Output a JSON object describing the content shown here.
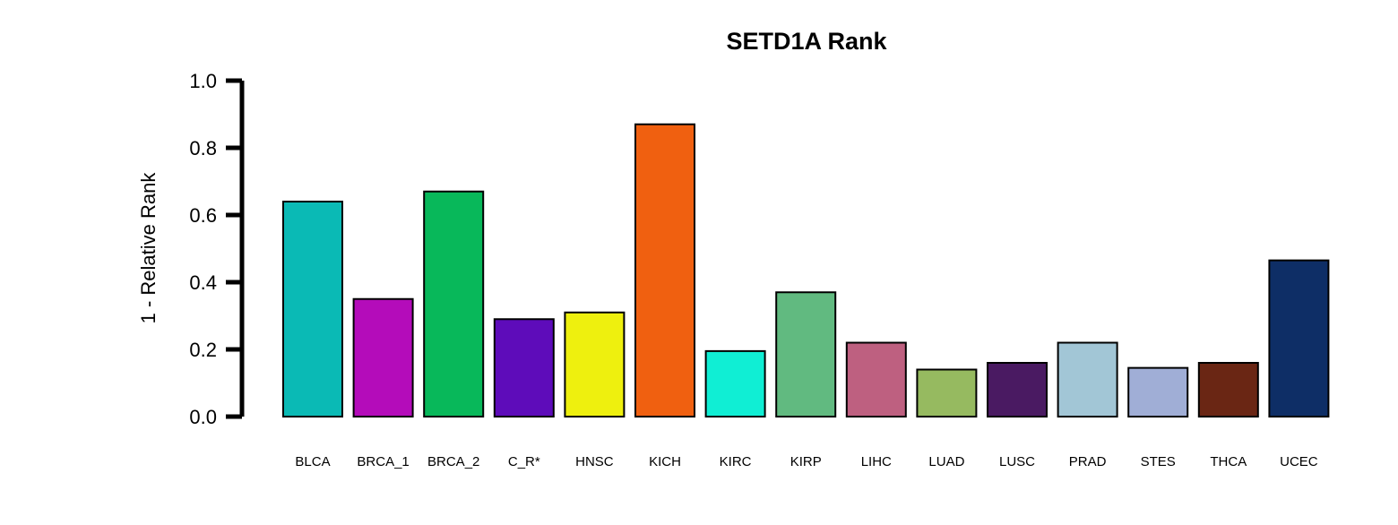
{
  "chart_data": {
    "type": "bar",
    "title": "SETD1A Rank",
    "ylabel": "1 - Relative Rank",
    "xlabel": "",
    "ylim": [
      0,
      1
    ],
    "yticks": [
      "0.0",
      "0.2",
      "0.4",
      "0.6",
      "0.8",
      "1.0"
    ],
    "ytick_values": [
      0,
      0.2,
      0.4,
      0.6,
      0.8,
      1.0
    ],
    "grid": false,
    "legend": "none",
    "categories": [
      "BLCA",
      "BRCA_1",
      "BRCA_2",
      "C_R*",
      "HNSC",
      "KICH",
      "KIRC",
      "KIRP",
      "LIHC",
      "LUAD",
      "LUSC",
      "PRAD",
      "STES",
      "THCA",
      "UCEC"
    ],
    "values": [
      0.64,
      0.35,
      0.67,
      0.29,
      0.31,
      0.87,
      0.195,
      0.37,
      0.22,
      0.14,
      0.16,
      0.22,
      0.145,
      0.16,
      0.465
    ],
    "colors": [
      "#0ABAB5",
      "#B40CBA",
      "#08B85A",
      "#5E0CBA",
      "#EEF00E",
      "#F06010",
      "#10EED4",
      "#61BA80",
      "#BE6080",
      "#96BA60",
      "#4A1A62",
      "#A2C6D6",
      "#A0AED6",
      "#6A2614",
      "#0E2E66"
    ]
  }
}
